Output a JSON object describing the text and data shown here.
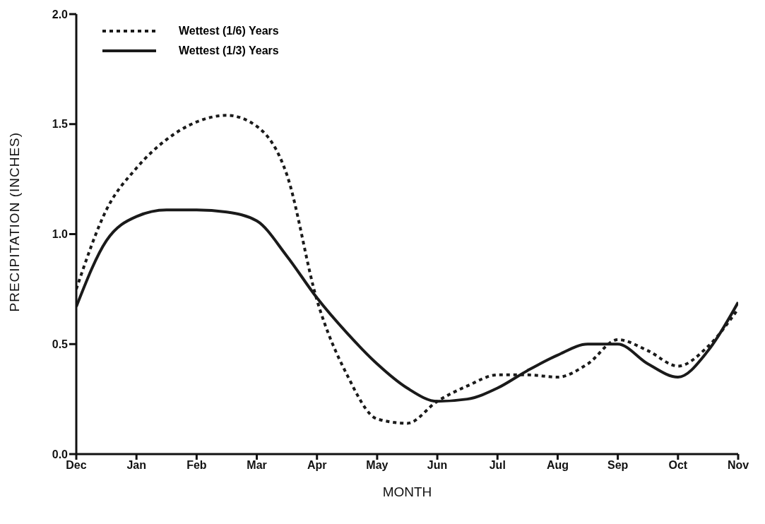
{
  "chart_data": {
    "type": "line",
    "xlabel": "MONTH",
    "ylabel": "PRECIPITATION (INCHES)",
    "categories": [
      "Dec",
      null,
      "Jan",
      null,
      "Feb",
      null,
      "Mar",
      null,
      "Apr",
      null,
      "May",
      null,
      "Jun",
      null,
      "Jul",
      null,
      "Aug",
      null,
      "Sep",
      null,
      "Oct",
      null,
      "Nov"
    ],
    "ylim": [
      0,
      2
    ],
    "yticks": [
      {
        "value": 0,
        "label": "0.0"
      },
      {
        "value": 0.5,
        "label": "0.5"
      },
      {
        "value": 1,
        "label": "1.0"
      },
      {
        "value": 1.5,
        "label": "1.5"
      },
      {
        "value": 2,
        "label": "2.0"
      }
    ],
    "grid": false,
    "legend": "top left",
    "marker": "none",
    "series": [
      {
        "name": "Wettest (1/6) Years",
        "color": "#1a1a1a",
        "line_style": "dotted",
        "values": [
          0.75,
          1.11,
          1.3,
          1.43,
          1.51,
          1.54,
          1.49,
          1.27,
          0.7,
          0.36,
          0.16,
          0.14,
          0.24,
          0.31,
          0.36,
          0.36,
          0.35,
          0.41,
          0.52,
          0.47,
          0.4,
          0.49,
          0.66
        ]
      },
      {
        "name": "Wettest (1/3) Years",
        "color": "#1a1a1a",
        "line_style": "solid",
        "values": [
          0.67,
          0.97,
          1.08,
          1.11,
          1.11,
          1.1,
          1.06,
          0.9,
          0.71,
          0.55,
          0.41,
          0.3,
          0.24,
          0.25,
          0.3,
          0.38,
          0.45,
          0.5,
          0.5,
          0.41,
          0.35,
          0.47,
          0.69
        ]
      }
    ]
  }
}
